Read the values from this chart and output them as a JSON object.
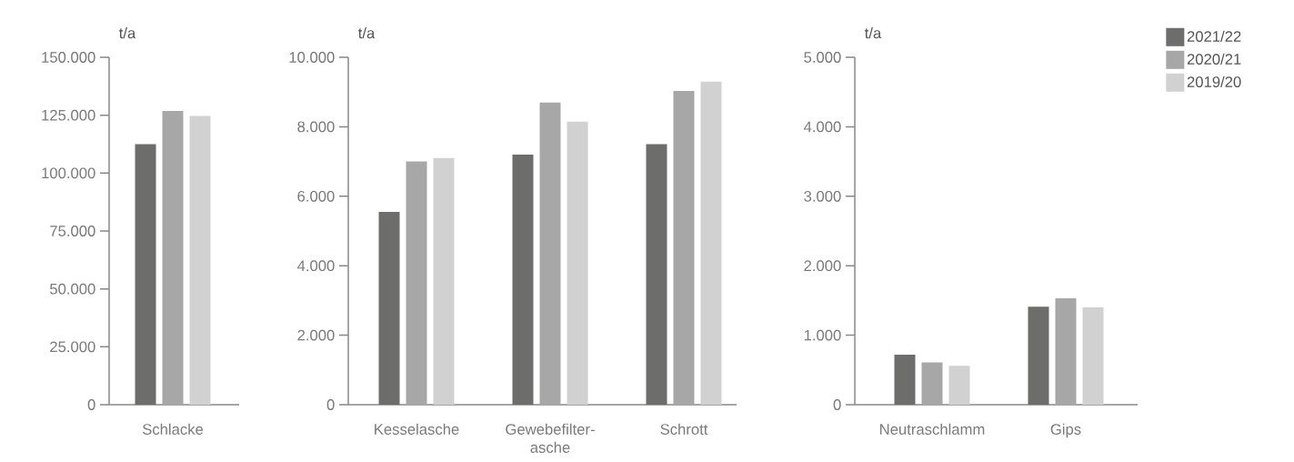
{
  "chart_data": [
    {
      "type": "bar",
      "ylabel": "t/a",
      "categories": [
        "Schlacke"
      ],
      "series": [
        {
          "color": "#6d6d6b",
          "values": [
            112500
          ]
        },
        {
          "color": "#a7a7a7",
          "values": [
            126800
          ]
        },
        {
          "color": "#d0d1d0",
          "values": [
            124700
          ]
        }
      ],
      "ylim": [
        0,
        150000
      ],
      "yticks": [
        0,
        {
          "value": 25000,
          "label": "25.000"
        },
        {
          "value": 50000,
          "label": "50.000"
        },
        {
          "value": 75000,
          "label": "75.000"
        },
        {
          "value": 100000,
          "label": "100.000"
        },
        {
          "value": 125000,
          "label": "125.000"
        },
        {
          "value": 150000,
          "label": "150.000"
        }
      ]
    },
    {
      "type": "bar",
      "ylabel": "t/a",
      "categories": [
        "Kesselasche",
        "Gewebefilter-asche",
        "Schrott"
      ],
      "series": [
        {
          "color": "#6d6d6b",
          "values": [
            5550,
            7200,
            7500
          ]
        },
        {
          "color": "#a7a7a7",
          "values": [
            7000,
            8700,
            9030
          ]
        },
        {
          "color": "#d0d1d0",
          "values": [
            7100,
            8150,
            9300
          ]
        }
      ],
      "ylim": [
        0,
        10000
      ],
      "yticks": [
        0,
        {
          "value": 2000,
          "label": "2.000"
        },
        {
          "value": 4000,
          "label": "4.000"
        },
        {
          "value": 6000,
          "label": "6.000"
        },
        {
          "value": 8000,
          "label": "8.000"
        },
        {
          "value": 10000,
          "label": "10.000"
        }
      ]
    },
    {
      "type": "bar",
      "ylabel": "t/a",
      "categories": [
        "Neutraschlamm",
        "Gips"
      ],
      "series": [
        {
          "name": "2021/22",
          "color": "#6d6d6b",
          "values": [
            720,
            1410
          ]
        },
        {
          "name": "2020/21",
          "color": "#a7a7a7",
          "values": [
            610,
            1530
          ]
        },
        {
          "name": "2019/20",
          "color": "#d0d1d0",
          "values": [
            560,
            1400
          ]
        }
      ],
      "ylim": [
        0,
        5000
      ],
      "yticks": [
        0,
        {
          "value": 1000,
          "label": "1.000"
        },
        {
          "value": 2000,
          "label": "2.000"
        },
        {
          "value": 3000,
          "label": "3.000"
        },
        {
          "value": 4000,
          "label": "4.000"
        },
        {
          "value": 5000,
          "label": "5.000"
        }
      ],
      "legend": "top right"
    }
  ]
}
